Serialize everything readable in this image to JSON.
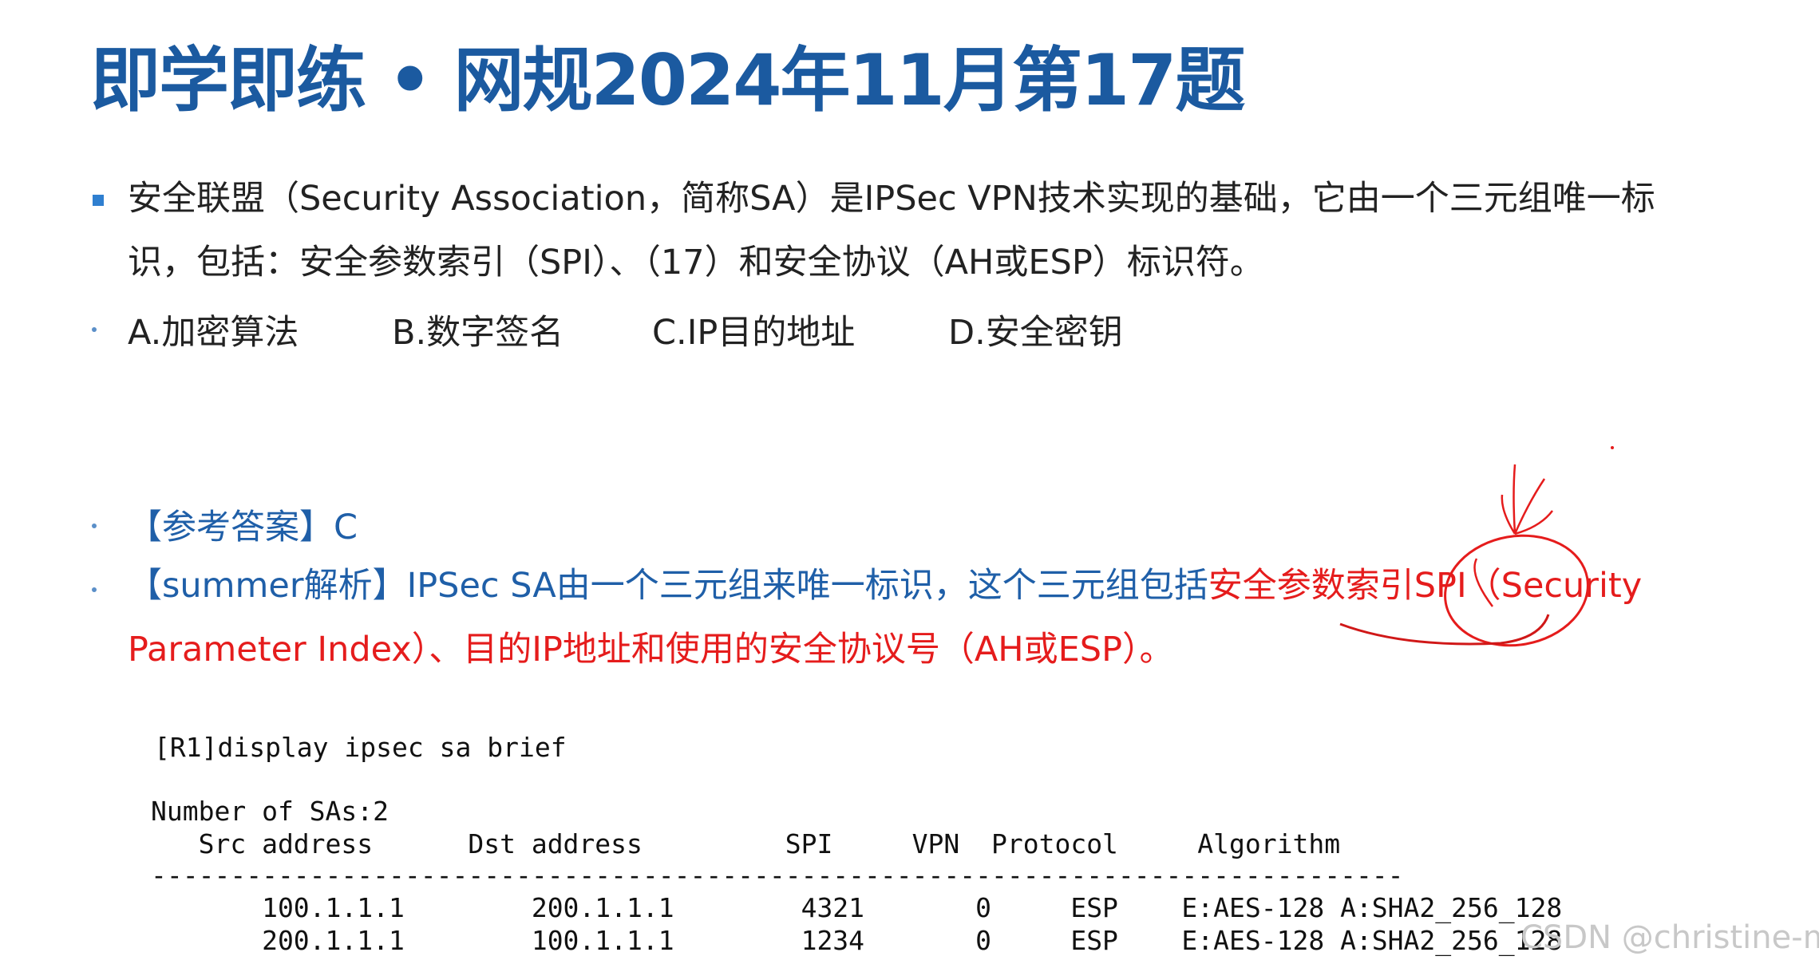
{
  "title": "即学即练 • 网规2024年11月第17题",
  "question": {
    "text": "安全联盟（Security Association，简称SA）是IPSec VPN技术实现的基础，它由一个三元组唯一标识，包括：安全参数索引（SPI）、（17）和安全协议（AH或ESP）标识符。",
    "options": [
      "A.加密算法",
      "B.数字签名",
      "C.IP目的地址",
      "D.安全密钥"
    ]
  },
  "answer": "【参考答案】C",
  "analysis": {
    "blue_part": "【summer解析】IPSec SA由一个三元组来唯一标识，这个三元组包括",
    "red_part": "安全参数索引SPI（Security Parameter Index）、目的IP地址和使用的安全协议号（AH或ESP）。"
  },
  "cli": {
    "command": "[R1]display ipsec sa brief",
    "count": "Number of SAs:2",
    "header": "   Src address      Dst address         SPI     VPN  Protocol     Algorithm",
    "divider": "-------------------------------------------------------------------------------",
    "rows": [
      "       100.1.1.1        200.1.1.1        4321       0     ESP    E:AES-128 A:SHA2_256_128",
      "       200.1.1.1        100.1.1.1        1234       0     ESP    E:AES-128 A:SHA2_256_128"
    ]
  },
  "watermark": "CSDN @christine-m",
  "colors": {
    "title": "#1b5aa0",
    "answer": "#1f5fa8",
    "highlight": "#e51c1c"
  }
}
